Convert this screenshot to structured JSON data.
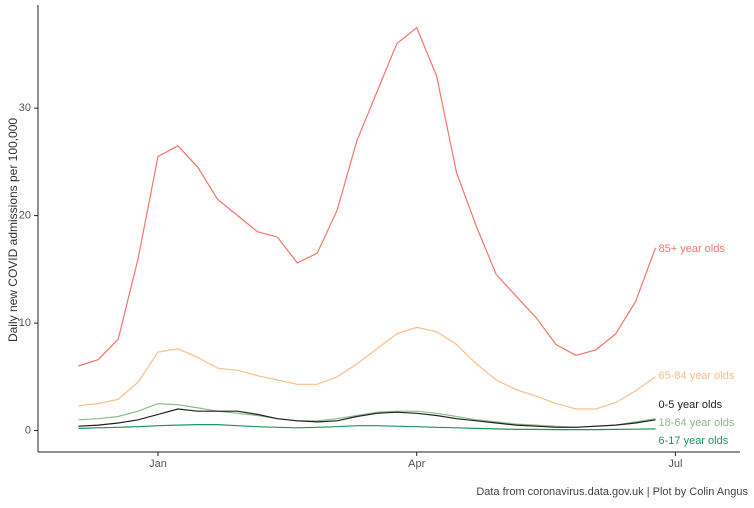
{
  "chart_data": {
    "type": "line",
    "y_label": "Daily new COVID admissions per 100,000",
    "caption": "Data from coronavirus.data.gov.uk | Plot by Colin Angus",
    "categories": [
      null,
      null,
      null,
      null,
      "Jan",
      null,
      null,
      null,
      null,
      null,
      null,
      null,
      null,
      null,
      null,
      null,
      null,
      "Apr",
      null,
      null,
      null,
      null,
      null,
      null,
      null,
      null,
      null,
      null,
      null,
      null,
      "Jul"
    ],
    "ylim": [
      -2,
      39.6
    ],
    "yticks": [
      0,
      10,
      20,
      30
    ],
    "grid": false,
    "series": [
      {
        "name": "85+ year olds",
        "color": "#f2766b",
        "values": [
          6.0,
          6.6,
          8.5,
          16,
          25.5,
          26.5,
          24.5,
          21.5,
          20,
          18.5,
          18,
          15.6,
          16.5,
          20.5,
          27,
          31.5,
          36,
          37.5,
          33,
          24,
          19,
          14.5,
          12.5,
          10.5,
          8,
          7,
          7.5,
          9,
          12,
          17,
          null
        ]
      },
      {
        "name": "65-84 year olds",
        "color": "#fcbf8c",
        "values": [
          2.3,
          2.5,
          2.9,
          4.5,
          7.3,
          7.6,
          6.8,
          5.8,
          5.6,
          5.1,
          4.7,
          4.3,
          4.3,
          5.0,
          6.2,
          7.6,
          9.0,
          9.6,
          9.2,
          8.0,
          6.2,
          4.7,
          3.8,
          3.2,
          2.5,
          2.0,
          2.0,
          2.6,
          3.7,
          5.0,
          null
        ]
      },
      {
        "name": "0-5 year olds",
        "color": "#222222",
        "values": [
          0.4,
          0.5,
          0.7,
          1.0,
          1.5,
          2.0,
          1.8,
          1.8,
          1.8,
          1.5,
          1.1,
          0.9,
          0.8,
          0.9,
          1.3,
          1.6,
          1.7,
          1.6,
          1.4,
          1.1,
          0.9,
          0.7,
          0.5,
          0.4,
          0.3,
          0.3,
          0.4,
          0.5,
          0.7,
          1.0,
          null
        ]
      },
      {
        "name": "18-64 year olds",
        "color": "#8cbc8a",
        "values": [
          1.0,
          1.1,
          1.3,
          1.8,
          2.5,
          2.4,
          2.1,
          1.8,
          1.6,
          1.4,
          1.1,
          0.9,
          0.9,
          1.1,
          1.4,
          1.7,
          1.8,
          1.8,
          1.6,
          1.3,
          1.0,
          0.8,
          0.6,
          0.5,
          0.4,
          0.3,
          0.4,
          0.5,
          0.8,
          1.1,
          null
        ]
      },
      {
        "name": "6-17 year olds",
        "color": "#1b9660",
        "values": [
          0.2,
          0.25,
          0.3,
          0.35,
          0.45,
          0.5,
          0.55,
          0.55,
          0.45,
          0.35,
          0.3,
          0.25,
          0.3,
          0.35,
          0.45,
          0.45,
          0.4,
          0.35,
          0.3,
          0.25,
          0.2,
          0.15,
          0.1,
          0.1,
          0.08,
          0.08,
          0.08,
          0.1,
          0.12,
          0.15,
          null
        ]
      }
    ]
  }
}
